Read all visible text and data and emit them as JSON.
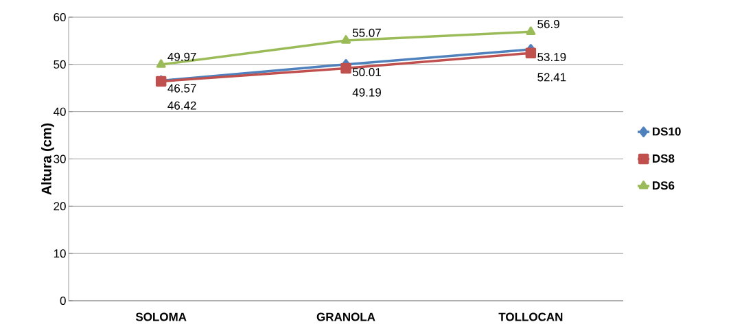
{
  "chart_data": {
    "type": "line",
    "ylabel": "Altura (cm)",
    "categories": [
      "SOLOMA",
      "GRANOLA",
      "TOLLOCAN"
    ],
    "series": [
      {
        "name": "DS10",
        "color": "#4f81bd",
        "marker": "diamond",
        "values": [
          46.57,
          50.01,
          53.19
        ]
      },
      {
        "name": "DS8",
        "color": "#c0504d",
        "marker": "square",
        "values": [
          46.42,
          49.19,
          52.41
        ]
      },
      {
        "name": "DS6",
        "color": "#9bbb59",
        "marker": "triangle",
        "values": [
          49.97,
          55.07,
          56.9
        ]
      }
    ],
    "ylim": [
      0,
      60
    ],
    "yticks": [
      0,
      10,
      20,
      30,
      40,
      50,
      60
    ],
    "grid": "y",
    "legend": "right",
    "data_labels": true
  }
}
